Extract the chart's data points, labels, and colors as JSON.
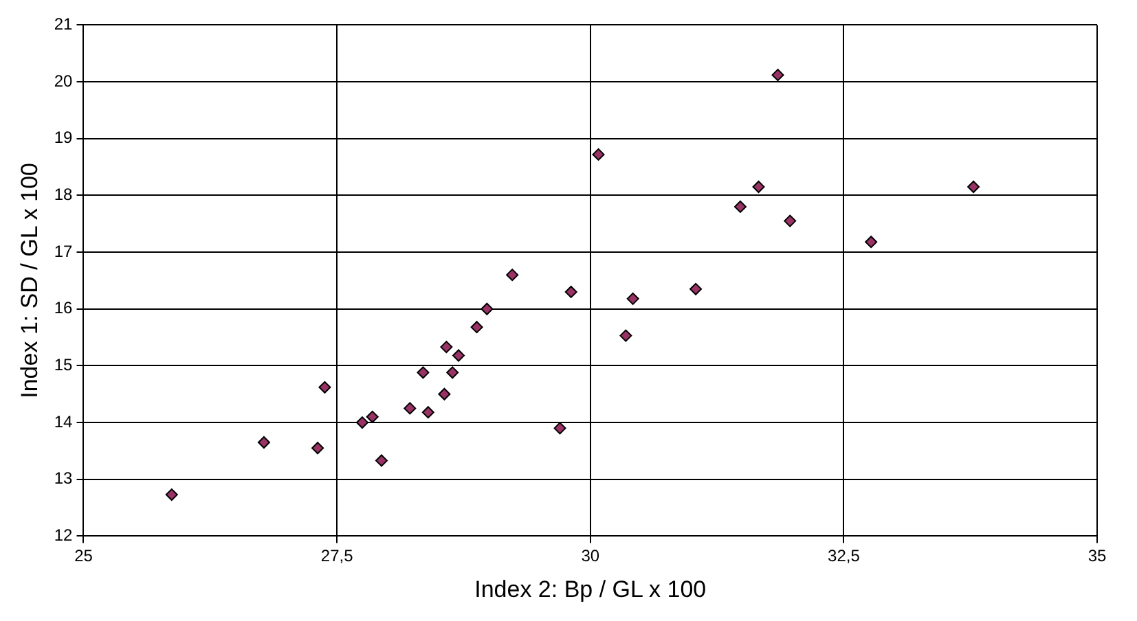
{
  "chart_data": {
    "type": "scatter",
    "xlabel": "Index 2: Bp / GL x 100",
    "ylabel": "Index 1: SD / GL x 100",
    "x": [
      25.87,
      26.78,
      27.31,
      27.38,
      27.94,
      27.75,
      27.85,
      28.22,
      28.4,
      28.56,
      28.35,
      28.64,
      28.58,
      28.7,
      28.88,
      28.98,
      29.23,
      29.81,
      29.7,
      30.08,
      30.35,
      30.42,
      31.04,
      31.48,
      31.66,
      31.85,
      31.97,
      32.77,
      33.78
    ],
    "series": [
      {
        "color": "#993366",
        "values": [
          12.73,
          13.65,
          13.55,
          14.62,
          13.33,
          14.0,
          14.1,
          14.25,
          14.18,
          14.5,
          14.88,
          14.88,
          15.33,
          15.18,
          15.68,
          16.0,
          16.6,
          16.3,
          13.9,
          18.72,
          15.53,
          16.18,
          16.35,
          17.8,
          18.15,
          20.12,
          17.55,
          17.18,
          18.15
        ]
      }
    ],
    "xlim": [
      25,
      35
    ],
    "xticks": [
      25,
      {
        "value": 27.5,
        "label": "27,5"
      },
      30,
      {
        "value": 32.5,
        "label": "32,5"
      },
      35
    ],
    "ylim": [
      12,
      21
    ],
    "yticks": [
      12,
      13,
      14,
      15,
      16,
      17,
      18,
      19,
      20,
      21
    ],
    "grid": true,
    "marker": "diamond",
    "legend": false
  }
}
